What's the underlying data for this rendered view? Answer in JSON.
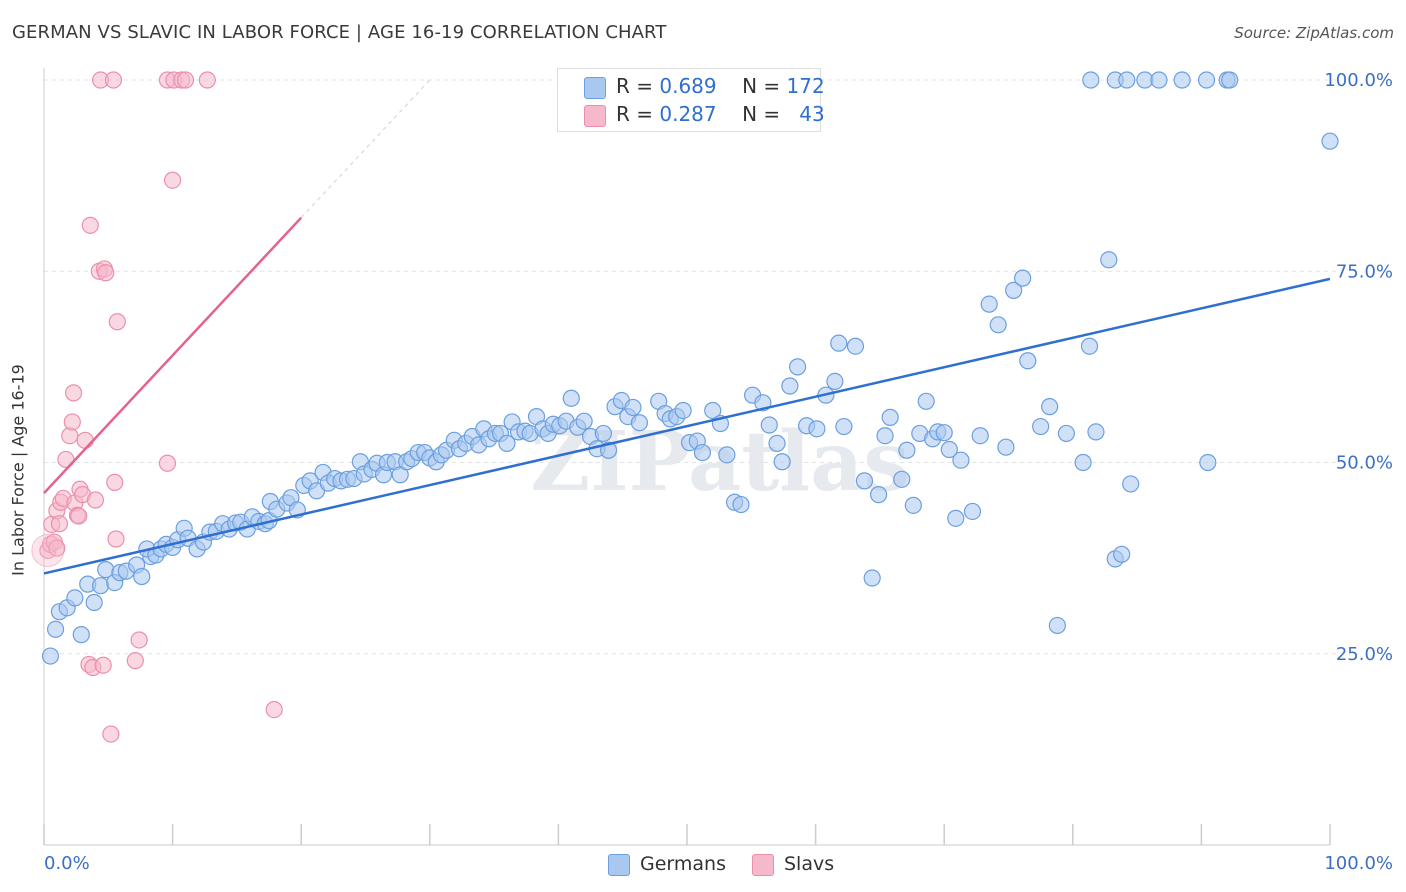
{
  "header": {
    "title": "GERMAN VS SLAVIC IN LABOR FORCE | AGE 16-19 CORRELATION CHART",
    "source": "Source: ZipAtlas.com"
  },
  "legend": {
    "germans": {
      "r_label": "R =",
      "r_value": "0.689",
      "n_label": "N =",
      "n_value": "172"
    },
    "slavs": {
      "r_label": "R =",
      "r_value": "0.287",
      "n_label": "N =",
      "n_value": "43"
    }
  },
  "bottom_legend": {
    "germans": "Germans",
    "slavs": "Slavs"
  },
  "colors": {
    "germans_fill": "#a9c8f0",
    "germans_stroke": "#6b9fe0",
    "germans_line": "#2f6fd0",
    "slavs_fill": "#f6b8cb",
    "slavs_stroke": "#ec8fad",
    "slavs_line": "#e4628e",
    "axis_text": "#3b6fc6",
    "grid": "#e4e4e4"
  },
  "chart_data": {
    "type": "scatter",
    "title": "GERMAN VS SLAVIC IN LABOR FORCE | AGE 16-19 CORRELATION CHART",
    "xlabel": "",
    "ylabel": "In Labor Force | Age 16-19",
    "xlim": [
      0,
      100
    ],
    "ylim": [
      0,
      100
    ],
    "x_tick_labels": [
      "0.0%",
      "100.0%"
    ],
    "y_ticks": [
      25,
      50,
      75,
      100
    ],
    "y_tick_labels": [
      "25.0%",
      "50.0%",
      "75.0%",
      "100.0%"
    ],
    "watermark": "ZIPatlas",
    "series": [
      {
        "name": "Germans",
        "r": 0.689,
        "n": 172,
        "trend": {
          "x": [
            0,
            100
          ],
          "y": [
            35.5,
            74.0
          ]
        },
        "points": [
          [
            0.5,
            24.7
          ],
          [
            0.9,
            28.2
          ],
          [
            1.2,
            30.5
          ],
          [
            1.8,
            31.0
          ],
          [
            2.4,
            32.3
          ],
          [
            2.9,
            27.5
          ],
          [
            3.4,
            34.1
          ],
          [
            3.9,
            31.7
          ],
          [
            4.4,
            33.9
          ],
          [
            4.8,
            36.0
          ],
          [
            5.5,
            34.3
          ],
          [
            5.9,
            35.6
          ],
          [
            6.4,
            35.8
          ],
          [
            7.2,
            36.6
          ],
          [
            7.6,
            35.1
          ],
          [
            8.3,
            37.7
          ],
          [
            8.0,
            38.7
          ],
          [
            8.7,
            37.9
          ],
          [
            9.1,
            38.7
          ],
          [
            9.5,
            39.3
          ],
          [
            10.0,
            38.9
          ],
          [
            10.4,
            39.9
          ],
          [
            10.9,
            41.4
          ],
          [
            11.2,
            40.1
          ],
          [
            11.9,
            38.7
          ],
          [
            12.4,
            39.6
          ],
          [
            12.9,
            40.9
          ],
          [
            13.4,
            41.0
          ],
          [
            13.9,
            42.0
          ],
          [
            14.4,
            41.3
          ],
          [
            14.9,
            42.1
          ],
          [
            15.3,
            42.2
          ],
          [
            15.8,
            41.3
          ],
          [
            16.2,
            42.9
          ],
          [
            16.7,
            42.3
          ],
          [
            17.2,
            42.0
          ],
          [
            17.5,
            42.4
          ],
          [
            17.6,
            44.9
          ],
          [
            18.1,
            43.9
          ],
          [
            18.9,
            44.7
          ],
          [
            19.2,
            45.4
          ],
          [
            19.7,
            43.8
          ],
          [
            20.2,
            47.0
          ],
          [
            20.7,
            47.6
          ],
          [
            21.2,
            46.3
          ],
          [
            21.7,
            48.7
          ],
          [
            22.1,
            47.3
          ],
          [
            22.6,
            47.9
          ],
          [
            23.1,
            47.6
          ],
          [
            23.6,
            47.8
          ],
          [
            24.1,
            47.9
          ],
          [
            24.6,
            50.1
          ],
          [
            24.9,
            48.5
          ],
          [
            25.5,
            49.1
          ],
          [
            25.9,
            49.9
          ],
          [
            26.4,
            48.4
          ],
          [
            26.7,
            50.0
          ],
          [
            27.3,
            50.1
          ],
          [
            27.7,
            48.4
          ],
          [
            28.2,
            50.1
          ],
          [
            28.6,
            50.5
          ],
          [
            29.1,
            51.3
          ],
          [
            29.6,
            51.3
          ],
          [
            30.0,
            50.6
          ],
          [
            30.5,
            50.1
          ],
          [
            30.9,
            51.0
          ],
          [
            31.3,
            51.6
          ],
          [
            31.9,
            52.9
          ],
          [
            32.3,
            51.8
          ],
          [
            32.8,
            52.5
          ],
          [
            33.3,
            53.4
          ],
          [
            33.8,
            52.3
          ],
          [
            34.2,
            54.4
          ],
          [
            34.6,
            53.1
          ],
          [
            35.1,
            53.8
          ],
          [
            35.5,
            53.8
          ],
          [
            36.0,
            52.5
          ],
          [
            36.4,
            55.3
          ],
          [
            36.9,
            54.0
          ],
          [
            37.4,
            54.1
          ],
          [
            37.8,
            53.8
          ],
          [
            38.3,
            56.0
          ],
          [
            38.8,
            54.4
          ],
          [
            39.2,
            53.8
          ],
          [
            39.6,
            55.0
          ],
          [
            40.1,
            54.8
          ],
          [
            40.6,
            55.4
          ],
          [
            41.0,
            58.4
          ],
          [
            41.5,
            54.6
          ],
          [
            42.0,
            55.4
          ],
          [
            42.5,
            53.4
          ],
          [
            43.0,
            51.8
          ],
          [
            43.5,
            53.8
          ],
          [
            43.9,
            51.6
          ],
          [
            44.4,
            57.3
          ],
          [
            44.9,
            58.1
          ],
          [
            45.4,
            56.0
          ],
          [
            45.8,
            57.2
          ],
          [
            46.3,
            55.2
          ],
          [
            47.8,
            58.0
          ],
          [
            48.3,
            56.4
          ],
          [
            48.7,
            55.7
          ],
          [
            49.2,
            56.0
          ],
          [
            49.7,
            56.8
          ],
          [
            50.2,
            52.6
          ],
          [
            50.8,
            52.8
          ],
          [
            51.2,
            51.3
          ],
          [
            52.0,
            56.8
          ],
          [
            52.6,
            55.1
          ],
          [
            53.1,
            51.0
          ],
          [
            53.7,
            44.8
          ],
          [
            54.2,
            44.5
          ],
          [
            55.1,
            58.8
          ],
          [
            55.9,
            57.8
          ],
          [
            56.4,
            54.9
          ],
          [
            57.0,
            52.5
          ],
          [
            57.4,
            50.1
          ],
          [
            58.0,
            60.0
          ],
          [
            58.6,
            62.5
          ],
          [
            59.3,
            54.8
          ],
          [
            60.1,
            54.4
          ],
          [
            60.8,
            58.8
          ],
          [
            61.5,
            60.6
          ],
          [
            62.2,
            54.7
          ],
          [
            61.8,
            65.6
          ],
          [
            63.1,
            65.2
          ],
          [
            63.8,
            47.6
          ],
          [
            64.4,
            34.9
          ],
          [
            64.9,
            45.8
          ],
          [
            65.4,
            53.5
          ],
          [
            65.8,
            55.9
          ],
          [
            66.7,
            47.8
          ],
          [
            67.1,
            51.6
          ],
          [
            67.6,
            44.4
          ],
          [
            68.1,
            53.8
          ],
          [
            68.6,
            58.0
          ],
          [
            69.1,
            53.1
          ],
          [
            69.5,
            54.0
          ],
          [
            70.0,
            53.9
          ],
          [
            70.4,
            51.7
          ],
          [
            70.9,
            42.7
          ],
          [
            71.3,
            50.3
          ],
          [
            72.2,
            43.6
          ],
          [
            72.8,
            53.5
          ],
          [
            73.5,
            70.7
          ],
          [
            74.2,
            68.0
          ],
          [
            74.8,
            52.0
          ],
          [
            75.4,
            72.5
          ],
          [
            76.1,
            74.1
          ],
          [
            76.5,
            63.3
          ],
          [
            77.5,
            54.7
          ],
          [
            78.2,
            57.3
          ],
          [
            78.8,
            28.7
          ],
          [
            79.5,
            53.8
          ],
          [
            80.8,
            50.0
          ],
          [
            81.3,
            65.2
          ],
          [
            81.8,
            54.0
          ],
          [
            82.8,
            76.5
          ],
          [
            83.3,
            37.4
          ],
          [
            83.8,
            38.0
          ],
          [
            84.5,
            47.2
          ],
          [
            81.4,
            100
          ],
          [
            83.3,
            100
          ],
          [
            84.2,
            100
          ],
          [
            85.6,
            100
          ],
          [
            86.7,
            100
          ],
          [
            88.5,
            100
          ],
          [
            90.4,
            100
          ],
          [
            92.0,
            100
          ],
          [
            92.2,
            100
          ],
          [
            90.5,
            50.0
          ],
          [
            100,
            92.0
          ]
        ]
      },
      {
        "name": "Slavs",
        "r": 0.287,
        "n": 43,
        "trend": {
          "x": [
            0,
            20
          ],
          "y": [
            46.0,
            82.0
          ]
        },
        "trend_dashed": {
          "x": [
            20,
            30
          ],
          "y": [
            82.0,
            100.0
          ]
        },
        "points": [
          [
            0.3,
            38.5
          ],
          [
            0.5,
            39.3
          ],
          [
            0.6,
            41.9
          ],
          [
            0.8,
            39.6
          ],
          [
            1.0,
            43.7
          ],
          [
            1.2,
            42.0
          ],
          [
            1.3,
            44.8
          ],
          [
            1.5,
            45.3
          ],
          [
            1.7,
            50.4
          ],
          [
            2.0,
            53.5
          ],
          [
            2.2,
            55.3
          ],
          [
            2.3,
            59.1
          ],
          [
            2.4,
            44.7
          ],
          [
            2.6,
            43.1
          ],
          [
            2.8,
            46.5
          ],
          [
            3.0,
            45.8
          ],
          [
            3.2,
            52.9
          ],
          [
            3.5,
            23.6
          ],
          [
            3.6,
            81.0
          ],
          [
            3.8,
            23.2
          ],
          [
            4.0,
            45.1
          ],
          [
            4.3,
            75.0
          ],
          [
            4.7,
            75.3
          ],
          [
            4.8,
            74.8
          ],
          [
            4.6,
            23.5
          ],
          [
            5.2,
            14.5
          ],
          [
            5.5,
            47.4
          ],
          [
            5.6,
            40.0
          ],
          [
            5.7,
            68.4
          ],
          [
            7.1,
            24.1
          ],
          [
            7.4,
            26.8
          ],
          [
            9.6,
            49.9
          ],
          [
            10.0,
            86.9
          ],
          [
            17.9,
            17.7
          ],
          [
            4.4,
            100
          ],
          [
            5.4,
            100
          ],
          [
            9.6,
            100
          ],
          [
            10.1,
            100
          ],
          [
            10.7,
            100
          ],
          [
            11.0,
            100
          ],
          [
            12.7,
            100
          ],
          [
            2.7,
            43.0
          ],
          [
            1.0,
            38.8
          ]
        ]
      }
    ]
  }
}
